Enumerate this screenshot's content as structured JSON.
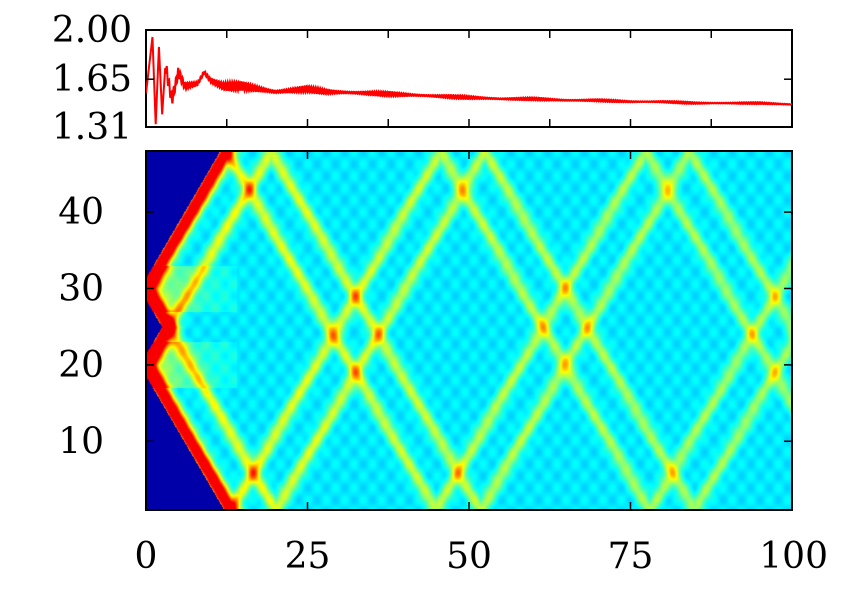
{
  "chart_data": [
    {
      "type": "line",
      "title": "",
      "xlabel": "",
      "ylabel": "",
      "xlim": [
        0,
        100
      ],
      "ylim": [
        1.31,
        2.0
      ],
      "grid": false,
      "y_ticks": [
        "2.00",
        "1.65",
        "1.31"
      ],
      "y_tick_values": [
        2.0,
        1.65,
        1.31
      ],
      "series": [
        {
          "color": "#ff0000",
          "x": [
            0,
            1,
            1.5,
            2,
            2.5,
            3,
            4,
            5,
            6,
            8,
            9,
            10,
            12,
            15,
            20,
            25,
            28,
            35,
            40,
            45,
            50,
            55,
            60,
            65,
            70,
            75,
            80,
            85,
            90,
            95,
            100
          ],
          "y": [
            1.55,
            1.95,
            1.33,
            1.88,
            1.4,
            1.75,
            1.5,
            1.7,
            1.6,
            1.62,
            1.7,
            1.64,
            1.6,
            1.6,
            1.56,
            1.58,
            1.56,
            1.55,
            1.54,
            1.53,
            1.52,
            1.51,
            1.51,
            1.5,
            1.5,
            1.49,
            1.49,
            1.48,
            1.48,
            1.48,
            1.47
          ]
        }
      ]
    },
    {
      "type": "heatmap",
      "title": "",
      "xlabel": "",
      "ylabel": "",
      "xlim": [
        0,
        100
      ],
      "ylim": [
        1,
        48
      ],
      "grid": false,
      "colormap": "jet",
      "x_ticks": [
        "0",
        "25",
        "50",
        "75",
        "100"
      ],
      "x_tick_values": [
        0,
        25,
        50,
        75,
        100
      ],
      "y_ticks": [
        "10",
        "20",
        "30",
        "40"
      ],
      "y_tick_values": [
        10,
        20,
        30,
        40
      ],
      "sources_y": [
        20,
        30
      ],
      "light_cone_speed": 1.45,
      "dark_start_value": 0.0,
      "note_values": "colour intensity only; no numeric colourbar shown"
    }
  ],
  "colors": {
    "line": "#ff0000",
    "axis": "#000000",
    "background": "#00007a"
  }
}
